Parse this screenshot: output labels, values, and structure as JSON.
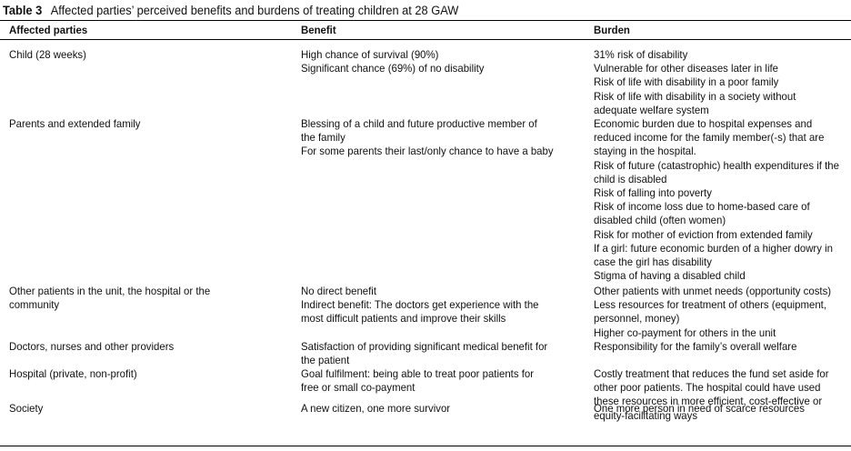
{
  "table": {
    "number": "Table 3",
    "title": "Affected parties’ perceived benefits and burdens of treating children at 28 GAW",
    "headers": {
      "party": "Affected parties",
      "benefit": "Benefit",
      "burden": "Burden"
    },
    "rows": [
      {
        "party": [
          "Child (28 weeks)"
        ],
        "benefit": [
          "High chance of survival (90%)",
          "Significant chance (69%) of no disability"
        ],
        "burden": [
          "31% risk of disability",
          "Vulnerable for other diseases later in life",
          "Risk of life with disability in a poor family",
          "Risk of life with disability in a society without",
          "adequate welfare system"
        ]
      },
      {
        "party": [
          "Parents and extended family"
        ],
        "benefit": [
          "Blessing of a child and future productive member of",
          "the family",
          "For some parents their last/only chance to have a baby"
        ],
        "burden": [
          "Economic burden due to hospital expenses and",
          "reduced income for the family member(-s) that are",
          "staying in the hospital.",
          "Risk of future (catastrophic) health expenditures if the",
          "child is disabled",
          "Risk of falling into poverty",
          "Risk of income loss due to home-based care of",
          "disabled child (often women)",
          "Risk for mother of eviction from extended family",
          "If a girl: future economic burden of a higher dowry in",
          "case the girl has disability",
          "Stigma of having a disabled child"
        ]
      },
      {
        "party": [
          "Other patients in the unit, the hospital or the",
          "community"
        ],
        "benefit": [
          "No direct benefit",
          "Indirect benefit: The doctors get experience with the",
          "most difficult patients and improve their skills"
        ],
        "burden": [
          "Other patients with unmet needs (opportunity costs)",
          "Less resources for treatment of others (equipment,",
          "personnel, money)",
          "Higher co-payment for others in the unit"
        ]
      },
      {
        "party": [
          "Doctors, nurses and other providers"
        ],
        "benefit": [
          "Satisfaction of providing significant medical benefit for",
          "the patient"
        ],
        "burden": [
          "Responsibility for the family’s overall welfare"
        ]
      },
      {
        "party": [
          "Hospital (private, non-profit)"
        ],
        "benefit": [
          "Goal fulfilment: being able to treat poor patients for",
          "free or small co-payment"
        ],
        "burden": [
          "Costly treatment that reduces the fund set aside for",
          "other poor patients. The hospital could have used",
          "these resources in more efficient, cost-effective or",
          "equity-facilitating ways"
        ]
      },
      {
        "party": [
          "Society"
        ],
        "benefit": [
          "A new citizen, one more survivor"
        ],
        "burden": [
          "One more person in need of scarce resources"
        ]
      }
    ]
  }
}
